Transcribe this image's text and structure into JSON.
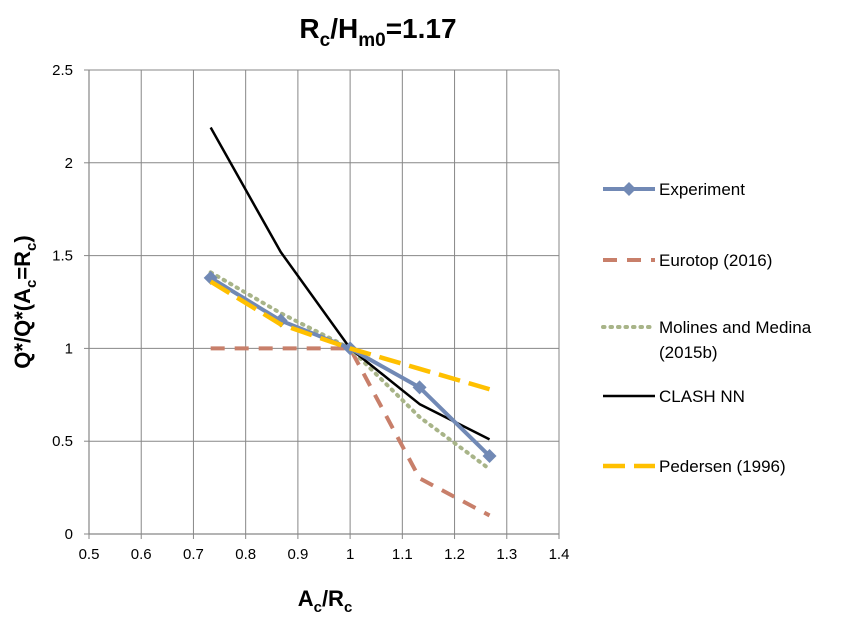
{
  "chart_data": {
    "type": "line",
    "title": {
      "base": "R",
      "sub1": "c",
      "mid": "/H",
      "sub2": "m0",
      "tail": "=1.17"
    },
    "xlabel": {
      "base": "A",
      "sub1": "c",
      "mid": "/R",
      "sub2": "c"
    },
    "ylabel": {
      "pre": "Q*/Q*(A",
      "sub1": "c",
      "mid": "=R",
      "sub2": "c",
      "post": ")"
    },
    "xlim": [
      0.5,
      1.4
    ],
    "ylim": [
      0,
      2.5
    ],
    "x_ticks": [
      0.5,
      0.6,
      0.7,
      0.8,
      0.9,
      1,
      1.1,
      1.2,
      1.3,
      1.4
    ],
    "x_tick_labels": [
      "0.5",
      "0.6",
      "0.7",
      "0.8",
      "0.9",
      "1",
      "1.1",
      "1.2",
      "1.3",
      "1.4"
    ],
    "y_ticks": [
      0,
      0.5,
      1,
      1.5,
      2,
      2.5
    ],
    "y_tick_labels": [
      "0",
      "0.5",
      "1",
      "1.5",
      "2",
      "2.5"
    ],
    "grid": true,
    "legend_position": "right",
    "series": [
      {
        "name": "Experiment",
        "color": "#7189b5",
        "style": "solid-diamond",
        "x": [
          0.733,
          0.867,
          1.0,
          1.133,
          1.267
        ],
        "y": [
          1.38,
          1.15,
          1.0,
          0.79,
          0.42
        ]
      },
      {
        "name": "Eurotop (2016)",
        "color": "#c87f6a",
        "style": "dashed",
        "x": [
          0.733,
          0.867,
          1.0,
          1.133,
          1.267
        ],
        "y": [
          1.0,
          1.0,
          1.0,
          0.3,
          0.1
        ]
      },
      {
        "name": "Molines and Medina (2015b)",
        "name_lines": [
          "Molines and Medina",
          "(2015b)"
        ],
        "color": "#a8b488",
        "style": "dotted",
        "x": [
          0.733,
          0.867,
          1.0,
          1.133,
          1.267
        ],
        "y": [
          1.41,
          1.19,
          1.0,
          0.63,
          0.35
        ]
      },
      {
        "name": "CLASH NN",
        "color": "#000000",
        "style": "solid",
        "x": [
          0.733,
          0.867,
          1.0,
          1.133,
          1.267
        ],
        "y": [
          2.19,
          1.52,
          1.0,
          0.7,
          0.51
        ]
      },
      {
        "name": "Pedersen (1996)",
        "color": "#ffc000",
        "style": "long-dashed",
        "x": [
          0.733,
          0.867,
          1.0,
          1.133,
          1.267
        ],
        "y": [
          1.36,
          1.13,
          1.0,
          0.89,
          0.78
        ]
      }
    ]
  }
}
